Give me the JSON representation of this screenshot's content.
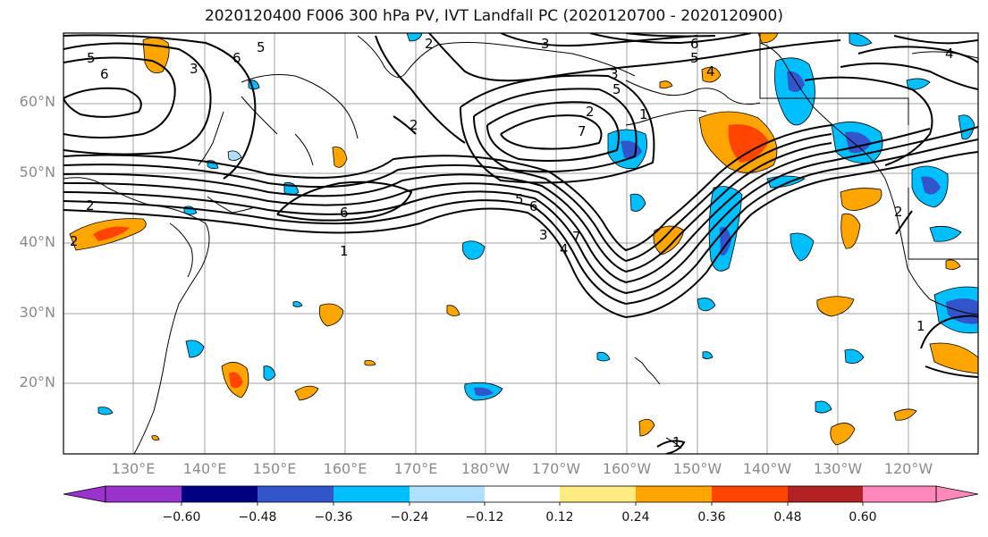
{
  "title": "2020120400 F006 300 hPa PV, IVT Landfall PC (2020120700 - 2020120900)",
  "lat_labels": [
    "60°N",
    "50°N",
    "40°N",
    "30°N",
    "20°N"
  ],
  "lon_labels": [
    "130°E",
    "140°E",
    "150°E",
    "160°E",
    "170°E",
    "180°W",
    "170°W",
    "160°W",
    "150°W",
    "140°W",
    "130°W",
    "120°W"
  ],
  "colorbar": {
    "tick_labels": [
      "−0.60",
      "−0.48",
      "−0.36",
      "−0.24",
      "−0.12",
      "0.12",
      "0.24",
      "0.36",
      "0.48",
      "0.60"
    ],
    "colors": [
      "#9933cc",
      "#000080",
      "#3355cc",
      "#00bfff",
      "#b0e0ff",
      "#ffffff",
      "#ffeb80",
      "#ffa500",
      "#ff4500",
      "#b22222",
      "#ff88bb"
    ],
    "extend": "both"
  },
  "pv_contour_labels": [
    "5",
    "6",
    "3",
    "2",
    "6",
    "5",
    "2",
    "3",
    "3",
    "5",
    "2",
    "7",
    "1",
    "2",
    "6",
    "6",
    "4",
    "5",
    "1",
    "7",
    "6",
    "5",
    "4",
    "3",
    "2",
    "2",
    "4",
    "1",
    "1"
  ]
}
